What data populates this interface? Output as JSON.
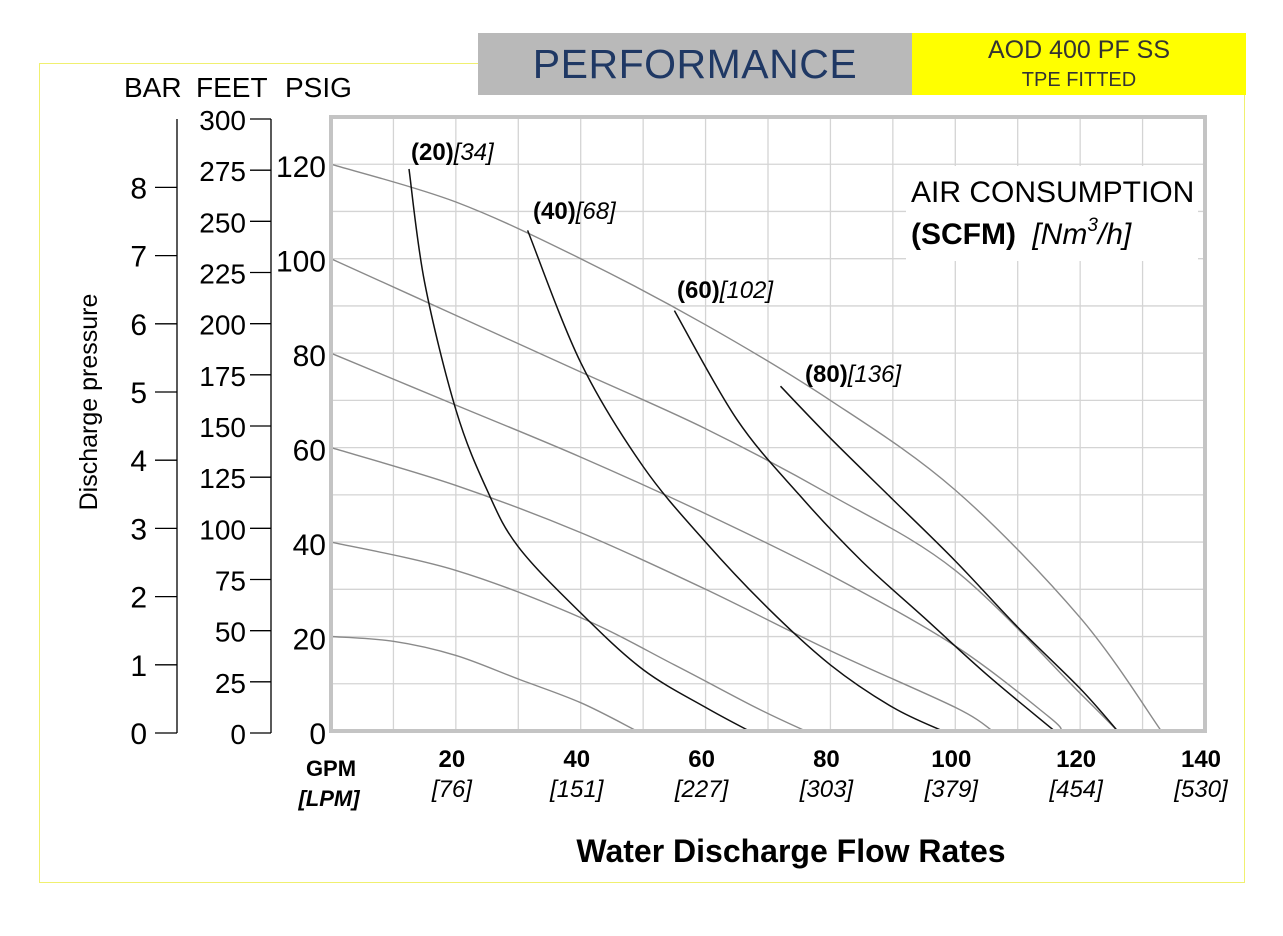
{
  "header": {
    "title": "PERFORMANCE",
    "model_line1": "AOD 400 PF SS",
    "model_line2": "TPE FITTED"
  },
  "axes": {
    "bar_label": "BAR",
    "feet_label": "FEET",
    "psig_label": "PSIG",
    "y_title": "Discharge pressure",
    "gpm_label": "GPM",
    "lpm_label": "[LPM]",
    "x_title": "Water Discharge Flow Rates"
  },
  "air_box": {
    "line1": "AIR CONSUMPTION",
    "unit_scfm": "(SCFM)",
    "unit_nm_open": "[Nm",
    "unit_sup": "3",
    "unit_nm_close": "/h]"
  },
  "colors": {
    "model_bg": "#ffff00",
    "title_bg": "#b9b9b9",
    "title_text": "#1f3864",
    "frame": "#f0f070"
  },
  "chart_data": {
    "type": "line",
    "xlabel": "Water Discharge Flow Rates",
    "ylabel": "Discharge pressure",
    "x_unit": "GPM",
    "x_unit_alt": "[LPM]",
    "xlim": [
      0,
      140
    ],
    "ylim": [
      0,
      130
    ],
    "grid": true,
    "x_ticks": [
      {
        "value": 20,
        "label": "20",
        "alt": "[76]"
      },
      {
        "value": 40,
        "label": "40",
        "alt": "[151]"
      },
      {
        "value": 60,
        "label": "60",
        "alt": "[227]"
      },
      {
        "value": 80,
        "label": "80",
        "alt": "[303]"
      },
      {
        "value": 100,
        "label": "100",
        "alt": "[379]"
      },
      {
        "value": 120,
        "label": "120",
        "alt": "[454]"
      },
      {
        "value": 140,
        "label": "140",
        "alt": "[530]"
      }
    ],
    "psig_ticks": [
      {
        "value": 0,
        "label": "0"
      },
      {
        "value": 20,
        "label": "20"
      },
      {
        "value": 40,
        "label": "40"
      },
      {
        "value": 60,
        "label": "60"
      },
      {
        "value": 80,
        "label": "80"
      },
      {
        "value": 100,
        "label": "100"
      },
      {
        "value": 120,
        "label": "120"
      }
    ],
    "feet_ticks": [
      "0",
      "25",
      "50",
      "75",
      "100",
      "125",
      "150",
      "175",
      "200",
      "225",
      "250",
      "275",
      "300"
    ],
    "bar_ticks": [
      "0",
      "1",
      "2",
      "3",
      "4",
      "5",
      "6",
      "7",
      "8"
    ],
    "inlet_pressure_curves": [
      {
        "psig": 20,
        "points": [
          [
            0,
            20
          ],
          [
            10,
            19
          ],
          [
            20,
            16
          ],
          [
            30,
            11
          ],
          [
            40,
            6
          ],
          [
            49,
            0
          ]
        ]
      },
      {
        "psig": 40,
        "points": [
          [
            0,
            40
          ],
          [
            20,
            34
          ],
          [
            40,
            24
          ],
          [
            55,
            14
          ],
          [
            68,
            5
          ],
          [
            76,
            0
          ]
        ]
      },
      {
        "psig": 60,
        "points": [
          [
            0,
            60
          ],
          [
            20,
            52
          ],
          [
            40,
            42
          ],
          [
            60,
            30
          ],
          [
            80,
            17
          ],
          [
            100,
            5
          ],
          [
            106,
            0
          ]
        ]
      },
      {
        "psig": 80,
        "points": [
          [
            0,
            80
          ],
          [
            20,
            69
          ],
          [
            40,
            58
          ],
          [
            60,
            46
          ],
          [
            80,
            33
          ],
          [
            100,
            18
          ],
          [
            115,
            3
          ],
          [
            117,
            0
          ]
        ]
      },
      {
        "psig": 100,
        "points": [
          [
            0,
            100
          ],
          [
            20,
            88
          ],
          [
            40,
            76
          ],
          [
            60,
            64
          ],
          [
            80,
            50
          ],
          [
            100,
            34
          ],
          [
            120,
            8
          ],
          [
            126,
            0
          ]
        ]
      },
      {
        "psig": 120,
        "points": [
          [
            0,
            120
          ],
          [
            20,
            112
          ],
          [
            40,
            100
          ],
          [
            60,
            86
          ],
          [
            80,
            70
          ],
          [
            100,
            51
          ],
          [
            120,
            24
          ],
          [
            133,
            0
          ]
        ]
      }
    ],
    "air_consumption_curves": [
      {
        "label": "(20)",
        "alt": "[34]",
        "points": [
          [
            12.5,
            119
          ],
          [
            15,
            95
          ],
          [
            20,
            68
          ],
          [
            25,
            51
          ],
          [
            30,
            39
          ],
          [
            40,
            25
          ],
          [
            50,
            13
          ],
          [
            60,
            5
          ],
          [
            67,
            0
          ]
        ]
      },
      {
        "label": "(40)",
        "alt": "[68]",
        "points": [
          [
            31.5,
            106
          ],
          [
            40,
            78
          ],
          [
            50,
            56
          ],
          [
            60,
            40
          ],
          [
            70,
            26
          ],
          [
            80,
            14
          ],
          [
            90,
            5
          ],
          [
            98,
            0
          ]
        ]
      },
      {
        "label": "(60)",
        "alt": "[102]",
        "points": [
          [
            55,
            89
          ],
          [
            65,
            66
          ],
          [
            75,
            50
          ],
          [
            85,
            36
          ],
          [
            95,
            24
          ],
          [
            105,
            12
          ],
          [
            115,
            1
          ],
          [
            116,
            0
          ]
        ]
      },
      {
        "label": "(80)",
        "alt": "[136]",
        "points": [
          [
            72,
            73
          ],
          [
            80,
            62
          ],
          [
            90,
            49
          ],
          [
            100,
            36
          ],
          [
            110,
            22
          ],
          [
            120,
            9
          ],
          [
            126,
            0
          ]
        ]
      }
    ]
  }
}
